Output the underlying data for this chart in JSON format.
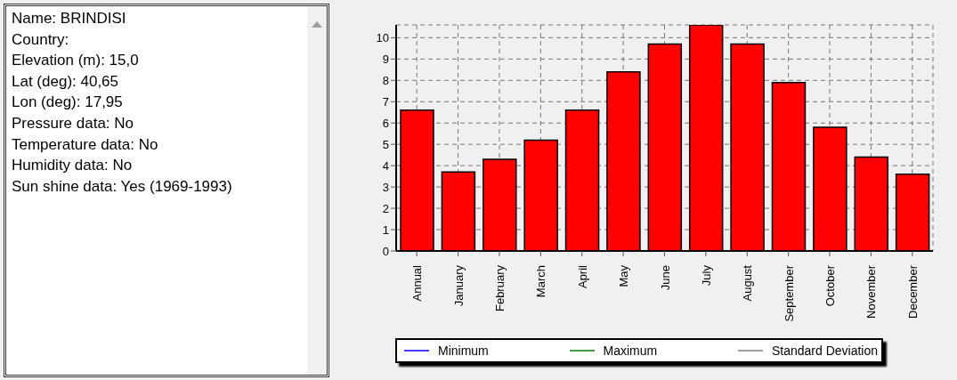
{
  "chart_data": [
    {
      "type": "other",
      "annotations": [
        "Name: BRINDISI",
        "Country:",
        "Elevation (m): 15,0",
        "Lat (deg): 40,65",
        "Lon (deg): 17,95",
        "Pressure data: No",
        "Temperature data: No",
        "Humidity data: No",
        "Sun shine data: Yes (1969-1993)"
      ]
    },
    {
      "type": "bar",
      "categories": [
        "Annual",
        "January",
        "February",
        "March",
        "April",
        "May",
        "June",
        "July",
        "August",
        "September",
        "October",
        "November",
        "December"
      ],
      "series": [
        {
          "color": "#ff0000",
          "values": [
            6.6,
            3.7,
            4.3,
            5.2,
            6.6,
            8.4,
            9.7,
            10.6,
            9.7,
            7.9,
            5.8,
            4.4,
            3.6
          ]
        },
        {
          "name": "Minimum",
          "type": "line",
          "color": "#0000ff",
          "values": [
            null,
            null,
            null,
            null,
            null,
            null,
            null,
            null,
            null,
            null,
            null,
            null,
            null
          ]
        },
        {
          "name": "Maximum",
          "type": "line",
          "color": "#008000",
          "values": [
            null,
            null,
            null,
            null,
            null,
            null,
            null,
            null,
            null,
            null,
            null,
            null,
            null
          ]
        },
        {
          "name": "Standard Deviation",
          "type": "line",
          "color": "#808080",
          "values": [
            null,
            null,
            null,
            null,
            null,
            null,
            null,
            null,
            null,
            null,
            null,
            null,
            null
          ]
        }
      ],
      "ylim": [
        0,
        10.6
      ],
      "yticks": [
        0,
        1,
        2,
        3,
        4,
        5,
        6,
        7,
        8,
        9,
        10
      ],
      "grid": true,
      "legend": "bottom"
    }
  ]
}
